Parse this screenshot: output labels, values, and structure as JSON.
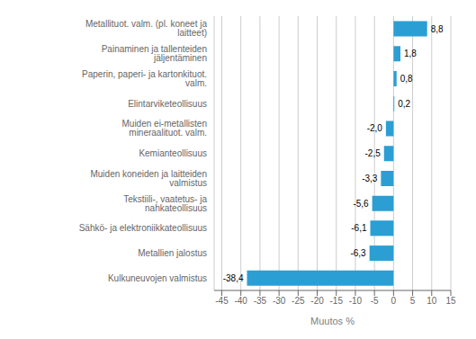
{
  "chart_data": {
    "type": "bar",
    "orientation": "horizontal",
    "categories": [
      "Kulkuneuvojen valmistus",
      "Metallien jalostus",
      "Sähkö- ja elektroniikkateollisuus",
      "Tekstiili-, vaatetus- ja nahkateollisuus",
      "Muiden koneiden ja laitteiden valmistus",
      "Kemianteollisuus",
      "Muiden ei-metallisten mineraalituot. valm.",
      "Elintarviketeollisuus",
      "Paperin, paperi- ja kartonkituot. valm.",
      "Painaminen ja tallenteiden jäljentäminen",
      "Metallituot. valm. (pl. koneet ja laitteet)"
    ],
    "values": [
      -38.4,
      -6.3,
      -6.1,
      -5.6,
      -3.3,
      -2.5,
      -2.0,
      0.2,
      0.8,
      1.8,
      8.8
    ],
    "value_labels": [
      "-38,4",
      "-6,3",
      "-6,1",
      "-5,6",
      "-3,3",
      "-2,5",
      "-2,0",
      "0,2",
      "0,8",
      "1,8",
      "8,8"
    ],
    "data_labels": true,
    "color": "#2b9fd4",
    "xlabel": "Muutos %",
    "xlim": [
      -47,
      15
    ],
    "xticks": [
      -45,
      -40,
      -35,
      -30,
      -25,
      -20,
      -15,
      -10,
      -5,
      0,
      5,
      10,
      15
    ],
    "grid": true
  }
}
